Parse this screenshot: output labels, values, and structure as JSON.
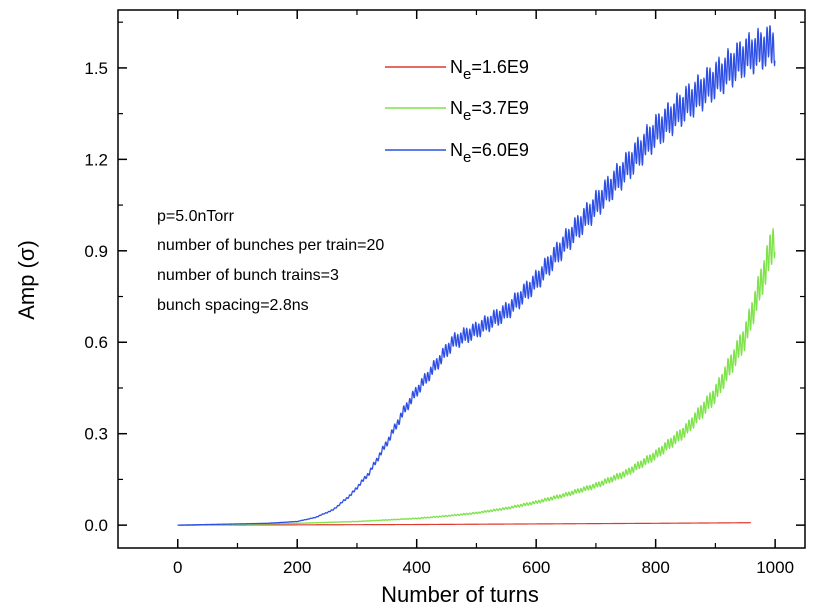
{
  "chart_data": {
    "type": "line",
    "xlabel": "Number of turns",
    "ylabel_prefix": "Amp (",
    "ylabel_symbol": "σ",
    "ylabel_suffix": ")",
    "xlim": [
      -100,
      1050
    ],
    "ylim": [
      -0.075,
      1.69
    ],
    "x_ticks": [
      0,
      200,
      400,
      600,
      800,
      1000
    ],
    "x_tick_labels": [
      "0",
      "200",
      "400",
      "600",
      "800",
      "1000"
    ],
    "y_ticks": [
      0.0,
      0.3,
      0.6,
      0.9,
      1.2,
      1.5
    ],
    "y_tick_labels": [
      "0.0",
      "0.3",
      "0.6",
      "0.9",
      "1.2",
      "1.5"
    ],
    "grid": false,
    "legend_position": "top-right",
    "series": [
      {
        "label_main": "N",
        "label_sub": "e",
        "label_rest": "=1.6E9",
        "color": "#e03a2e",
        "x": [
          0,
          200,
          400,
          600,
          800,
          960
        ],
        "y": [
          0.0,
          0.001,
          0.002,
          0.004,
          0.006,
          0.008
        ]
      },
      {
        "label_main": "N",
        "label_sub": "e",
        "label_rest": "=3.7E9",
        "color": "#7ee24a",
        "x": [
          0,
          100,
          200,
          300,
          400,
          450,
          500,
          550,
          600,
          650,
          700,
          750,
          800,
          850,
          900,
          950,
          1000
        ],
        "y": [
          0.0,
          0.002,
          0.006,
          0.012,
          0.022,
          0.03,
          0.04,
          0.055,
          0.075,
          0.1,
          0.13,
          0.17,
          0.23,
          0.31,
          0.43,
          0.62,
          0.95
        ]
      },
      {
        "label_main": "N",
        "label_sub": "e",
        "label_rest": "=6.0E9",
        "color": "#2e4fe6",
        "x": [
          0,
          100,
          150,
          200,
          230,
          260,
          290,
          320,
          350,
          380,
          400,
          430,
          460,
          500,
          550,
          600,
          650,
          700,
          750,
          800,
          850,
          900,
          950,
          1000
        ],
        "y": [
          0.0,
          0.004,
          0.006,
          0.012,
          0.025,
          0.05,
          0.1,
          0.17,
          0.27,
          0.38,
          0.44,
          0.52,
          0.6,
          0.64,
          0.7,
          0.8,
          0.93,
          1.05,
          1.17,
          1.29,
          1.38,
          1.46,
          1.54,
          1.58
        ]
      }
    ],
    "annotations": [
      "p=5.0nTorr",
      "number of bunches per train=20",
      "number of bunch trains=3",
      "bunch spacing=2.8ns"
    ]
  }
}
